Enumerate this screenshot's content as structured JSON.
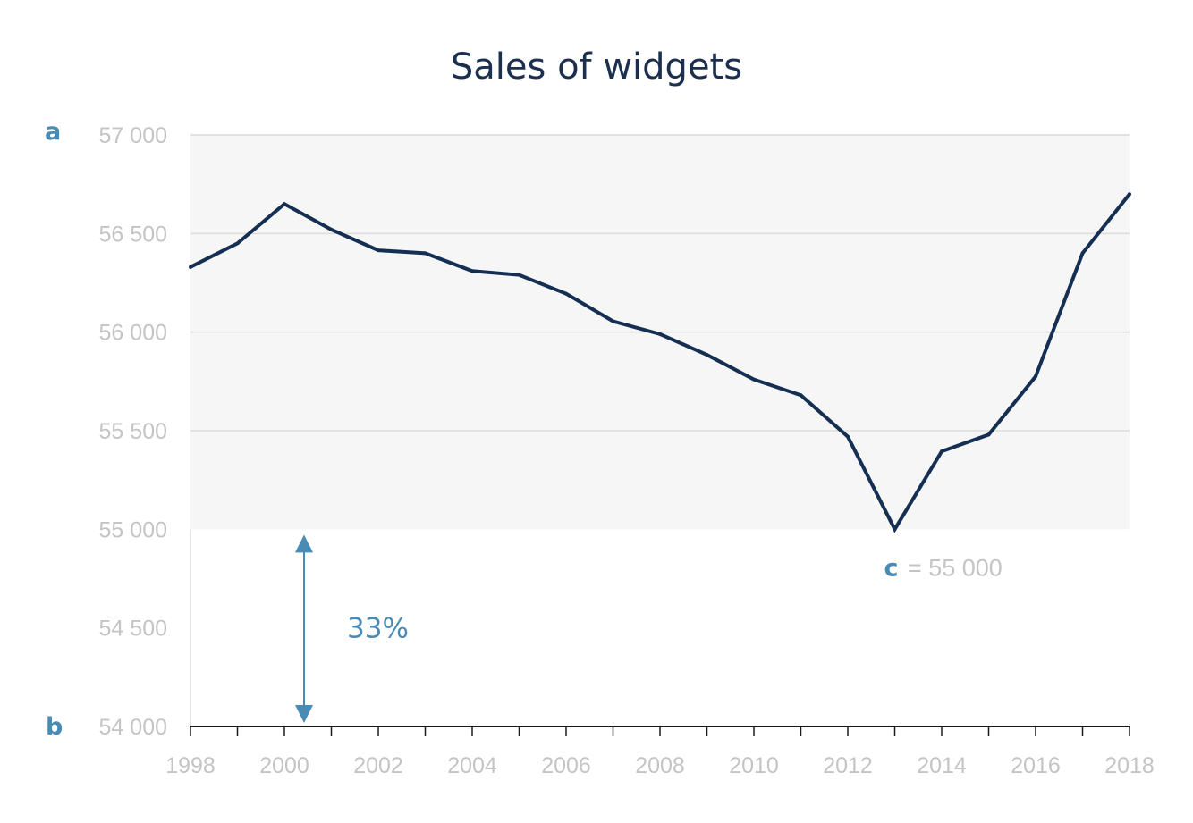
{
  "chart_data": {
    "type": "line",
    "title": "Sales of widgets",
    "x": [
      1998,
      1999,
      2000,
      2001,
      2002,
      2003,
      2004,
      2005,
      2006,
      2007,
      2008,
      2009,
      2010,
      2011,
      2012,
      2013,
      2014,
      2015,
      2016,
      2017,
      2018
    ],
    "series": [
      {
        "values": [
          56330,
          56450,
          56650,
          56520,
          56415,
          56400,
          56310,
          56290,
          56195,
          56055,
          55990,
          55885,
          55760,
          55680,
          55470,
          55000,
          55395,
          55480,
          55775,
          56400,
          56700
        ]
      }
    ],
    "xticks": [
      "1998",
      "2000",
      "2002",
      "2004",
      "2006",
      "2008",
      "2010",
      "2012",
      "2014",
      "2016",
      "2018"
    ],
    "yticks": [
      "54 000",
      "54 500",
      "55 000",
      "55 500",
      "56 000",
      "56 500",
      "57 000"
    ],
    "ylim": [
      54000,
      57000
    ],
    "xlim": [
      1998,
      2018
    ],
    "shaded_range": [
      55000,
      57000
    ],
    "grid": true,
    "line_color": "#152f52",
    "accent_color": "#4a8bb5",
    "annotations": {
      "top_marker": "a",
      "bottom_marker": "b",
      "min_marker": "c",
      "min_text": "= 55 000",
      "percent": "33%"
    }
  }
}
